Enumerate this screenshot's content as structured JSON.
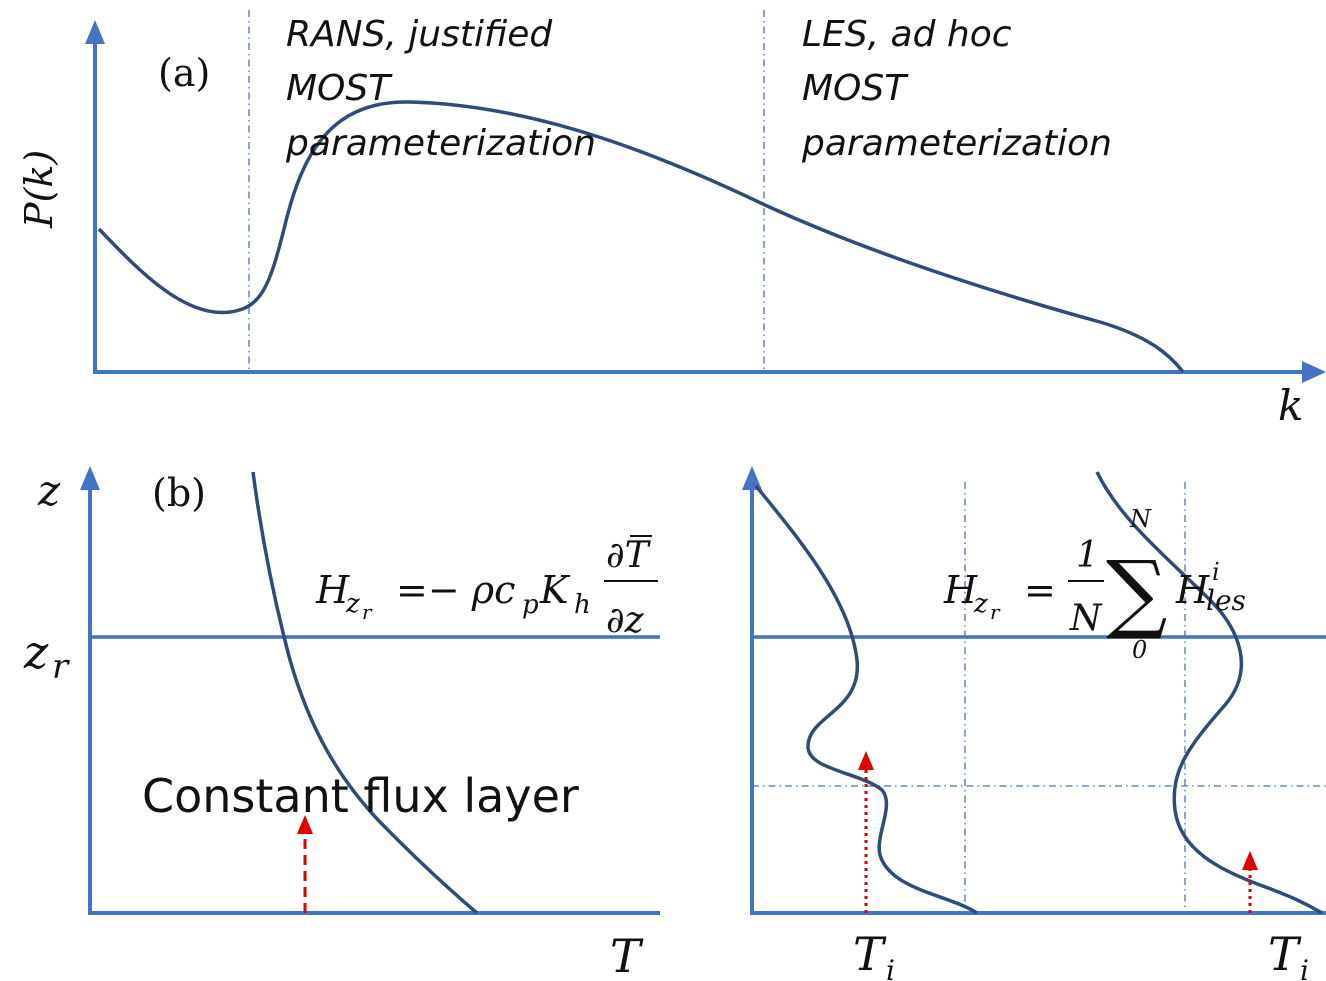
{
  "colors": {
    "axis": "#4472c4",
    "curve": "#2f4b7c",
    "arrow": "#e00000",
    "text": "#111111"
  },
  "panel_a": {
    "label": "(a)",
    "y_label": "P(k)",
    "x_label": "k",
    "rans_text": [
      "RANS, justified",
      "MOST",
      "parameterization"
    ],
    "les_text": [
      "LES, ad hoc",
      "MOST",
      "parameterization"
    ]
  },
  "panel_b": {
    "label": "(b)",
    "z_label": "z",
    "zr_label": "z",
    "zr_sub": "r",
    "left": {
      "x_label": "T",
      "layer_label": "Constant flux layer",
      "equation": {
        "lhs": "H",
        "lhs_sub": "z",
        "lhs_subsub": "r",
        "eq": "=− ρc",
        "cp_sub": "p",
        "K": "K",
        "K_sub": "h",
        "num": "∂T",
        "den": "∂z"
      }
    },
    "right": {
      "x_label_1": "T",
      "x_label_1_sub": "i",
      "x_label_2": "T",
      "x_label_2_sub": "i",
      "equation": {
        "lhs": "H",
        "lhs_sub": "z",
        "lhs_subsub": "r",
        "eq": "=",
        "num": "1",
        "den": "N",
        "sum": "∑",
        "sum_top": "N",
        "sum_bottom": "0",
        "term": "H",
        "term_sup": "i",
        "term_sub": "les"
      }
    }
  }
}
